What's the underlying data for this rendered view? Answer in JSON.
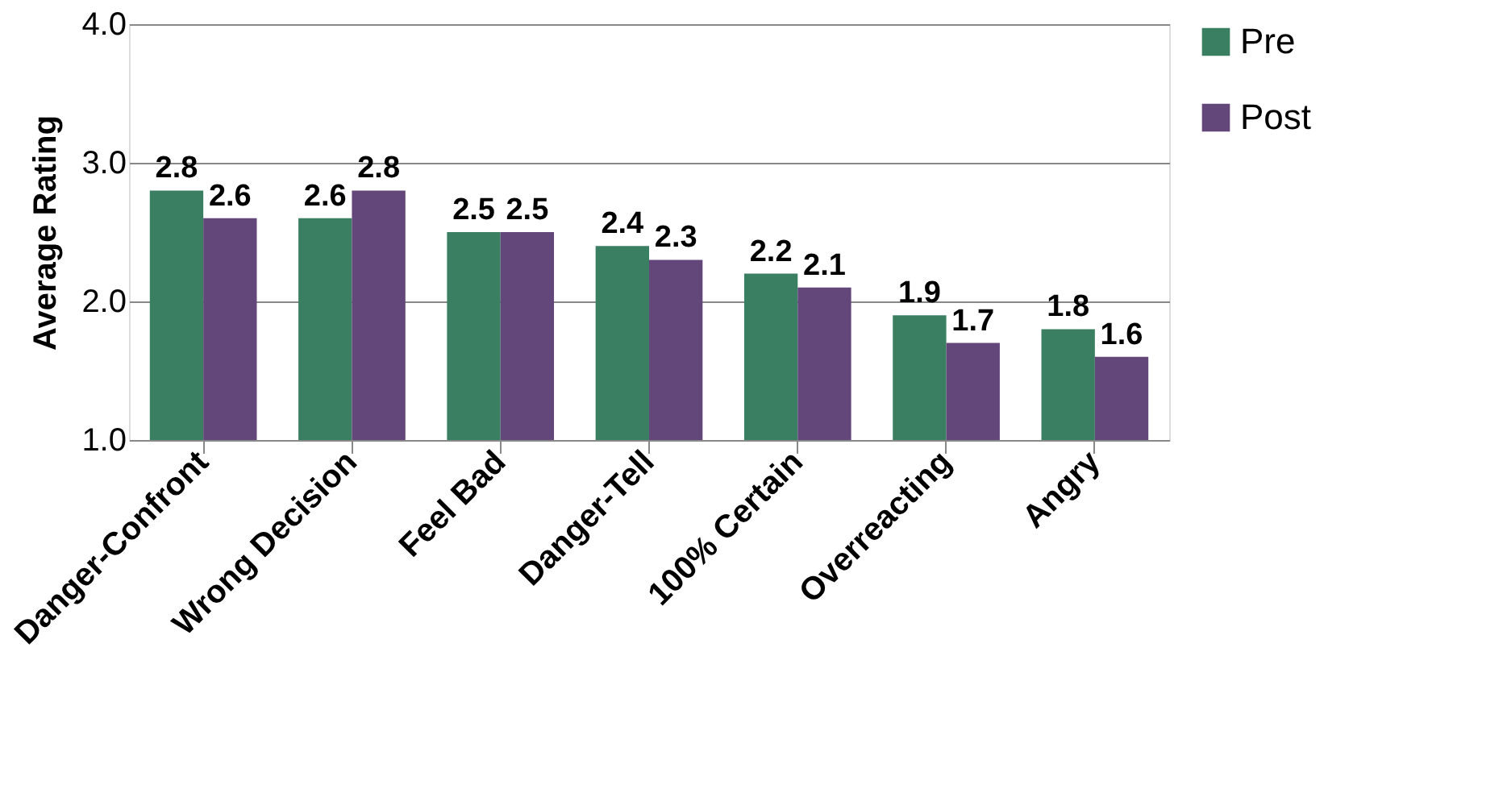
{
  "chart_data": {
    "type": "bar",
    "ylabel": "Average Rating",
    "categories": [
      "Danger-Confront",
      "Wrong Decision",
      "Feel Bad",
      "Danger-Tell",
      "100% Certain",
      "Overreacting",
      "Angry"
    ],
    "series": [
      {
        "name": "Pre",
        "color": "#3b7f62",
        "values": [
          2.8,
          2.6,
          2.5,
          2.4,
          2.2,
          1.9,
          1.8
        ]
      },
      {
        "name": "Post",
        "color": "#63477a",
        "values": [
          2.6,
          2.8,
          2.5,
          2.3,
          2.1,
          1.7,
          1.6
        ]
      }
    ],
    "ylim": [
      1.0,
      4.0
    ],
    "yticks": [
      {
        "value": 1,
        "label": "1.0"
      },
      {
        "value": 2,
        "label": "2.0"
      },
      {
        "value": 3,
        "label": "3.0"
      },
      {
        "value": 4,
        "label": "4.0"
      }
    ],
    "grid": "y",
    "legend": "right",
    "data_labels": true
  }
}
